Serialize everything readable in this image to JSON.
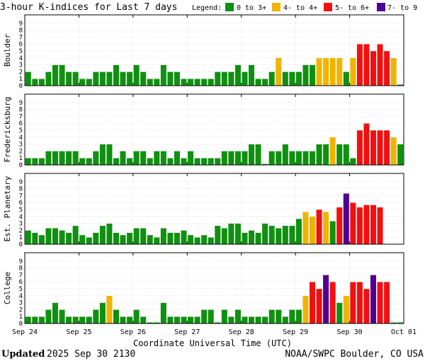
{
  "title": "3-hour K-indices for Last 7 days",
  "legend": {
    "label": "Legend:",
    "items": [
      {
        "label": "0 to 3+",
        "color": "#109010"
      },
      {
        "label": "4- to 4+",
        "color": "#f0b400"
      },
      {
        "label": "5- to 6+",
        "color": "#f01010"
      },
      {
        "label": "7- to 9",
        "color": "#500090"
      }
    ]
  },
  "xlabel": "Coordinate Universal Time (UTC)",
  "footer": {
    "updated_label": "Updated",
    "updated_value": "2025 Sep 30 2130",
    "source": "NOAA/SWPC Boulder, CO USA"
  },
  "chart_data": {
    "type": "bar",
    "ylim": [
      0,
      9
    ],
    "yticks": [
      "0",
      "1",
      "2",
      "3",
      "4",
      "5",
      "6",
      "7",
      "8",
      "9"
    ],
    "x_ticks": [
      "Sep 24",
      "Sep 25",
      "Sep 26",
      "Sep 27",
      "Sep 28",
      "Sep 29",
      "Sep 30",
      "Oct 01"
    ],
    "bars_per_day": 8,
    "total_periods": 56,
    "thresholds": {
      "green_max": 3.67,
      "yellow_max": 4.67,
      "red_max": 6.67
    },
    "colors": {
      "green": "#109010",
      "yellow": "#f0b400",
      "red": "#f01010",
      "purple": "#500090"
    },
    "panels": [
      {
        "name": "Boulder",
        "values": [
          2,
          1,
          1,
          2,
          3,
          3,
          2,
          2,
          1,
          1,
          2,
          2,
          2,
          3,
          2,
          2,
          3,
          2,
          1,
          1,
          3,
          2,
          2,
          1,
          1,
          1,
          1,
          1,
          2,
          2,
          2,
          3,
          2,
          3,
          1,
          1,
          2,
          4,
          2,
          2,
          2,
          3,
          3,
          4,
          4,
          4,
          4,
          2,
          4,
          6,
          6,
          5,
          6,
          5,
          4,
          0
        ]
      },
      {
        "name": "Fredericksburg",
        "values": [
          1,
          1,
          1,
          2,
          2,
          2,
          2,
          2,
          1,
          1,
          2,
          3,
          3,
          1,
          2,
          1,
          2,
          2,
          1,
          2,
          2,
          1,
          2,
          1,
          2,
          1,
          1,
          1,
          1,
          2,
          2,
          2,
          2,
          3,
          3,
          0,
          2,
          2,
          3,
          2,
          2,
          2,
          2,
          3,
          3,
          4,
          3,
          3,
          1,
          5,
          6,
          5,
          5,
          5,
          4,
          3
        ]
      },
      {
        "name": "Est. Planetary",
        "values": [
          2,
          1.67,
          1.33,
          2.33,
          2.33,
          2,
          1.67,
          2.67,
          1.33,
          1,
          1.67,
          2.67,
          3,
          1.67,
          1.33,
          1.67,
          2.33,
          2.33,
          1.33,
          1,
          2.33,
          1.67,
          1.67,
          2,
          1.33,
          1,
          1.33,
          1,
          2.67,
          2.33,
          3,
          3,
          1.67,
          2,
          1.67,
          3,
          2.67,
          2.33,
          2.67,
          2.67,
          3.67,
          4.67,
          4,
          5,
          4.67,
          3.33,
          5.33,
          7.33,
          6,
          5.33,
          5.67,
          5.67,
          5.33
        ]
      },
      {
        "name": "College",
        "values": [
          1,
          1,
          1,
          2,
          3,
          2,
          1,
          1,
          1,
          1,
          2,
          3,
          4,
          2,
          1,
          1,
          2,
          1,
          0,
          0,
          3,
          1,
          1,
          1,
          1,
          1,
          2,
          2,
          0,
          2,
          1,
          2,
          1,
          1,
          1,
          1,
          2,
          2,
          1,
          2,
          2,
          4,
          6,
          5,
          7,
          6,
          3,
          4,
          6,
          6,
          5,
          7,
          6,
          6,
          0,
          0
        ]
      }
    ]
  }
}
